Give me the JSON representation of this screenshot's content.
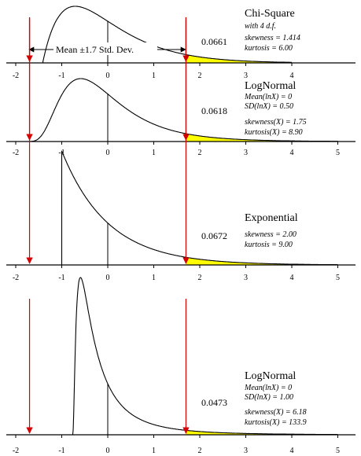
{
  "annotation": {
    "label": "Mean ±1.7 Std. Dev."
  },
  "colors": {
    "curve": "#000000",
    "tail_fill": "#ffff00",
    "marker_line": "#d40000",
    "axis": "#000000"
  },
  "chart_data": [
    {
      "type": "area",
      "distribution": "chi-square",
      "df": 4,
      "title": "Chi-Square",
      "subtitle": "with 4 d.f.",
      "stats": [
        "skewness = 1.414",
        "kurtosis = 6.00"
      ],
      "tail_probability": "0.0661",
      "xlim": [
        -2,
        4
      ],
      "x_ticks": [
        -2,
        -1,
        0,
        1,
        2,
        3,
        4
      ],
      "cutoffs": [
        -1.7,
        1.7
      ],
      "mean": 0
    },
    {
      "type": "area",
      "distribution": "lognormal",
      "sigma": 0.5,
      "title": "LogNormal",
      "stats": [
        "Mean(lnX) = 0",
        "SD(lnX) = 0.50"
      ],
      "stats2": [
        "skewness(X) = 1.75",
        "kurtosis(X) = 8.90"
      ],
      "tail_probability": "0.0618",
      "xlim": [
        -2,
        5
      ],
      "x_ticks": [
        -2,
        -1,
        0,
        1,
        2,
        3,
        4,
        5
      ],
      "cutoffs": [
        -1.7,
        1.7
      ],
      "mean": 0
    },
    {
      "type": "area",
      "distribution": "exponential",
      "title": "Exponential",
      "stats": [
        "skewness = 2.00",
        "kurtosis = 9.00"
      ],
      "tail_probability": "0.0672",
      "xlim": [
        -2,
        5
      ],
      "x_ticks": [
        -2,
        -1,
        0,
        1,
        2,
        3,
        4,
        5
      ],
      "cutoffs": [
        -1.7,
        1.7
      ],
      "mean": 0
    },
    {
      "type": "area",
      "distribution": "lognormal",
      "sigma": 1.0,
      "title": "LogNormal",
      "stats": [
        "Mean(lnX) = 0",
        "SD(lnX) = 1.00"
      ],
      "stats2": [
        "skewness(X) = 6.18",
        "kurtosis(X) = 133.9"
      ],
      "tail_probability": "0.0473",
      "xlim": [
        -2,
        5
      ],
      "x_ticks": [
        -2,
        -1,
        0,
        1,
        2,
        3,
        4,
        5
      ],
      "cutoffs": [
        -1.7,
        1.7
      ],
      "mean": 0
    }
  ]
}
